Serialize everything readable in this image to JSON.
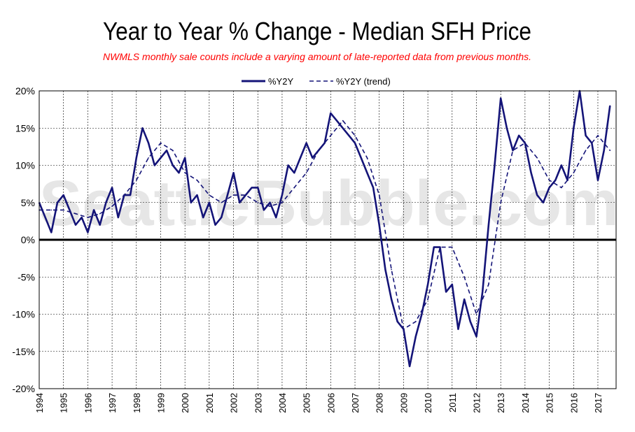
{
  "colors": {
    "series": "#141478",
    "subtitle": "#ff0000",
    "zero_line": "#000000",
    "grid": "#000000"
  },
  "watermark": "SeattleBubble.com",
  "chart_data": {
    "type": "line",
    "title": "Year to Year % Change - Median SFH Price",
    "subtitle": "NWMLS monthly sale counts include a varying amount of late-reported  data  from previous months.",
    "legend_position": "top-center",
    "grid": true,
    "ylim": [
      -20,
      20
    ],
    "y_ticks": [
      "-20%",
      "-15%",
      "-10%",
      "-5%",
      "0%",
      "5%",
      "10%",
      "15%",
      "20%"
    ],
    "y_tick_values": [
      -20,
      -15,
      -10,
      -5,
      0,
      5,
      10,
      15,
      20
    ],
    "x_ticks": [
      "1994",
      "1995",
      "1996",
      "1997",
      "1998",
      "1999",
      "2000",
      "2001",
      "2002",
      "2003",
      "2004",
      "2005",
      "2006",
      "2007",
      "2008",
      "2009",
      "2010",
      "2011",
      "2012",
      "2013",
      "2014",
      "2015",
      "2016",
      "2017"
    ],
    "xlim": [
      1994,
      2017.75
    ],
    "series": [
      {
        "name": "%Y2Y",
        "style": "solid",
        "x": [
          1994.0,
          1994.25,
          1994.5,
          1994.75,
          1995.0,
          1995.25,
          1995.5,
          1995.75,
          1996.0,
          1996.25,
          1996.5,
          1996.75,
          1997.0,
          1997.25,
          1997.5,
          1997.75,
          1998.0,
          1998.25,
          1998.5,
          1998.75,
          1999.0,
          1999.25,
          1999.5,
          1999.75,
          2000.0,
          2000.25,
          2000.5,
          2000.75,
          2001.0,
          2001.25,
          2001.5,
          2001.75,
          2002.0,
          2002.25,
          2002.5,
          2002.75,
          2003.0,
          2003.25,
          2003.5,
          2003.75,
          2004.0,
          2004.25,
          2004.5,
          2004.75,
          2005.0,
          2005.25,
          2005.5,
          2005.75,
          2006.0,
          2006.25,
          2006.5,
          2006.75,
          2007.0,
          2007.25,
          2007.5,
          2007.75,
          2008.0,
          2008.25,
          2008.5,
          2008.75,
          2009.0,
          2009.25,
          2009.5,
          2009.75,
          2010.0,
          2010.25,
          2010.5,
          2010.75,
          2011.0,
          2011.25,
          2011.5,
          2011.75,
          2012.0,
          2012.25,
          2012.5,
          2012.75,
          2013.0,
          2013.25,
          2013.5,
          2013.75,
          2014.0,
          2014.25,
          2014.5,
          2014.75,
          2015.0,
          2015.25,
          2015.5,
          2015.75,
          2016.0,
          2016.25,
          2016.5,
          2016.75,
          2017.0,
          2017.25,
          2017.5
        ],
        "values": [
          5,
          3,
          1,
          5,
          6,
          4,
          2,
          3,
          1,
          4,
          2,
          5,
          7,
          3,
          6,
          6,
          11,
          15,
          13,
          10,
          11,
          12,
          10,
          9,
          11,
          5,
          6,
          3,
          5,
          2,
          3,
          6,
          9,
          5,
          6,
          7,
          7,
          4,
          5,
          3,
          6,
          10,
          9,
          11,
          13,
          11,
          12,
          13,
          17,
          16,
          15,
          14,
          13,
          11,
          9,
          7,
          2,
          -4,
          -8,
          -11,
          -12,
          -17,
          -13,
          -10,
          -6,
          -1,
          -1,
          -7,
          -6,
          -12,
          -8,
          -11,
          -13,
          -7,
          2,
          10,
          19,
          15,
          12,
          14,
          13,
          9,
          6,
          5,
          7,
          8,
          10,
          8,
          15,
          20,
          14,
          13,
          8,
          12,
          18
        ]
      },
      {
        "name": "%Y2Y (trend)",
        "style": "dashed",
        "x": [
          1994.0,
          1994.5,
          1995.0,
          1995.5,
          1996.0,
          1996.5,
          1997.0,
          1997.5,
          1998.0,
          1998.5,
          1999.0,
          1999.5,
          2000.0,
          2000.5,
          2001.0,
          2001.5,
          2002.0,
          2002.5,
          2003.0,
          2003.5,
          2004.0,
          2004.5,
          2005.0,
          2005.5,
          2006.0,
          2006.5,
          2007.0,
          2007.5,
          2008.0,
          2008.5,
          2009.0,
          2009.5,
          2010.0,
          2010.5,
          2011.0,
          2011.5,
          2012.0,
          2012.5,
          2013.0,
          2013.5,
          2014.0,
          2014.5,
          2015.0,
          2015.5,
          2016.0,
          2016.5,
          2017.0,
          2017.5
        ],
        "values": [
          4,
          4,
          4,
          3.5,
          3,
          3.5,
          4.5,
          6,
          8,
          11,
          13,
          12,
          9,
          8,
          6,
          5,
          6,
          6,
          5,
          4.5,
          5,
          7,
          9,
          12,
          14,
          16,
          14,
          11,
          6,
          -4,
          -12,
          -11,
          -8,
          -1,
          -1,
          -5,
          -10,
          -6,
          5,
          12,
          13,
          11,
          8,
          7,
          9,
          12,
          14,
          12
        ]
      }
    ]
  }
}
